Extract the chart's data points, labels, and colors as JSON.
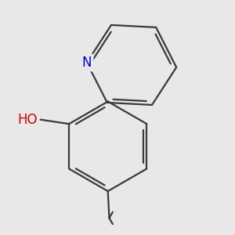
{
  "background_color": "#e8e8e8",
  "bond_color": "#3a3a3a",
  "N_color": "#0000cc",
  "O_color": "#cc0000",
  "bond_width": 1.6,
  "dbo": 0.055,
  "font_size_N": 12,
  "font_size_O": 12,
  "font_size_label": 11,
  "fig_size": [
    3.0,
    3.0
  ],
  "dpi": 100,
  "xlim": [
    -1.6,
    1.6
  ],
  "ylim": [
    -1.9,
    1.7
  ]
}
